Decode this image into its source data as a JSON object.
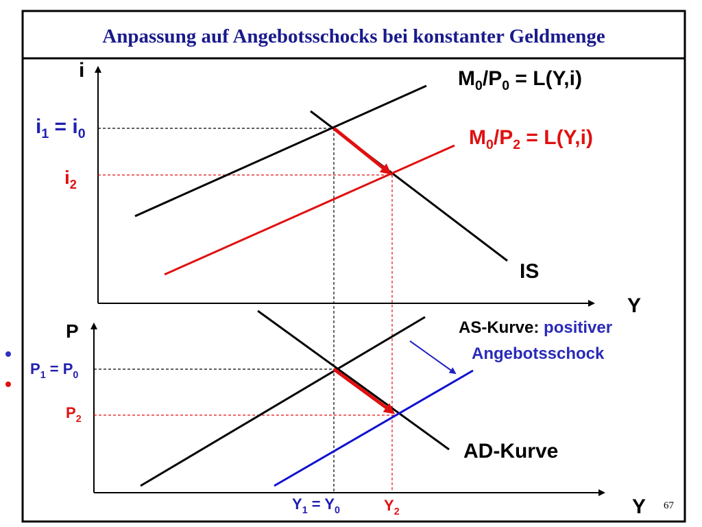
{
  "title": "Anpassung auf Angebotsschocks bei konstanter Geldmenge",
  "upper": {
    "y_axis_label": "i",
    "x_axis_label": "Y",
    "lm0_label": [
      "M",
      "0",
      "/P",
      "0",
      " = L(Y,i)"
    ],
    "lm2_label": [
      "M",
      "0",
      "/P",
      "2",
      " = L(Y,i)"
    ],
    "is_label": "IS",
    "i10_label": [
      "i",
      "1",
      " = i",
      "0"
    ],
    "i2_label": [
      "i",
      "2"
    ]
  },
  "lower": {
    "y_axis_label": "P",
    "x_axis_label": "Y",
    "as_label": [
      "AS-Kurve: ",
      "positiver",
      "Angebotsschock"
    ],
    "ad_label": "AD-Kurve",
    "p10_label": [
      "P",
      "1",
      " = P",
      "0"
    ],
    "p2_label": [
      "P",
      "2"
    ],
    "y10_label": [
      "Y",
      "1",
      " = Y",
      "0"
    ],
    "y2_label": [
      "Y",
      "2"
    ]
  },
  "page_number": "67"
}
